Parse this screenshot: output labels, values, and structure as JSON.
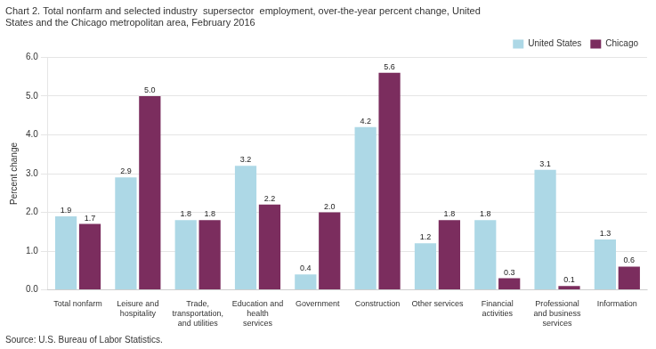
{
  "chart_data": {
    "type": "bar",
    "title": [
      "Chart 2. Total nonfarm and selected industry  supersector  employment, over-the-year percent change, United",
      "States and the Chicago metropolitan area, February 2016"
    ],
    "y_label": "Percent change",
    "source": "Source: U.S. Bureau of Labor Statistics.",
    "categories": [
      "Total nonfarm",
      "Leisure and\nhospitality",
      "Trade,\ntransportation,\nand utilities",
      "Education and\nhealth\nservices",
      "Government",
      "Construction",
      "Other services",
      "Financial\nactivities",
      "Professional\nand business\nservices",
      "Information"
    ],
    "series": [
      {
        "name": "United States",
        "color": "#add8e6",
        "values": [
          1.9,
          2.9,
          1.8,
          3.2,
          0.4,
          4.2,
          1.2,
          1.8,
          3.1,
          1.3
        ],
        "value_labels": [
          "1.9",
          "2.9",
          "1.8",
          "3.2",
          "0.4",
          "4.2",
          "1.2",
          "1.8",
          "3.1",
          "1.3"
        ]
      },
      {
        "name": "Chicago",
        "color": "#7B2D5E",
        "values": [
          1.7,
          5.0,
          1.8,
          2.2,
          2.0,
          5.6,
          1.8,
          0.3,
          0.1,
          0.6
        ],
        "value_labels": [
          "1.7",
          "5.0",
          "1.8",
          "2.2",
          "2.0",
          "5.6",
          "1.8",
          "0.3",
          "0.1",
          "0.6"
        ]
      }
    ],
    "ylim": [
      0,
      6.0
    ],
    "yticks": [
      {
        "value": 0,
        "label": "0.0"
      },
      {
        "value": 1,
        "label": "1.0"
      },
      {
        "value": 2,
        "label": "2.0"
      },
      {
        "value": 3,
        "label": "3.0"
      },
      {
        "value": 4,
        "label": "4.0"
      },
      {
        "value": 5,
        "label": "5.0"
      },
      {
        "value": 6,
        "label": "6.0"
      }
    ],
    "grid": true,
    "legend": "upper right",
    "data_labels": true
  }
}
